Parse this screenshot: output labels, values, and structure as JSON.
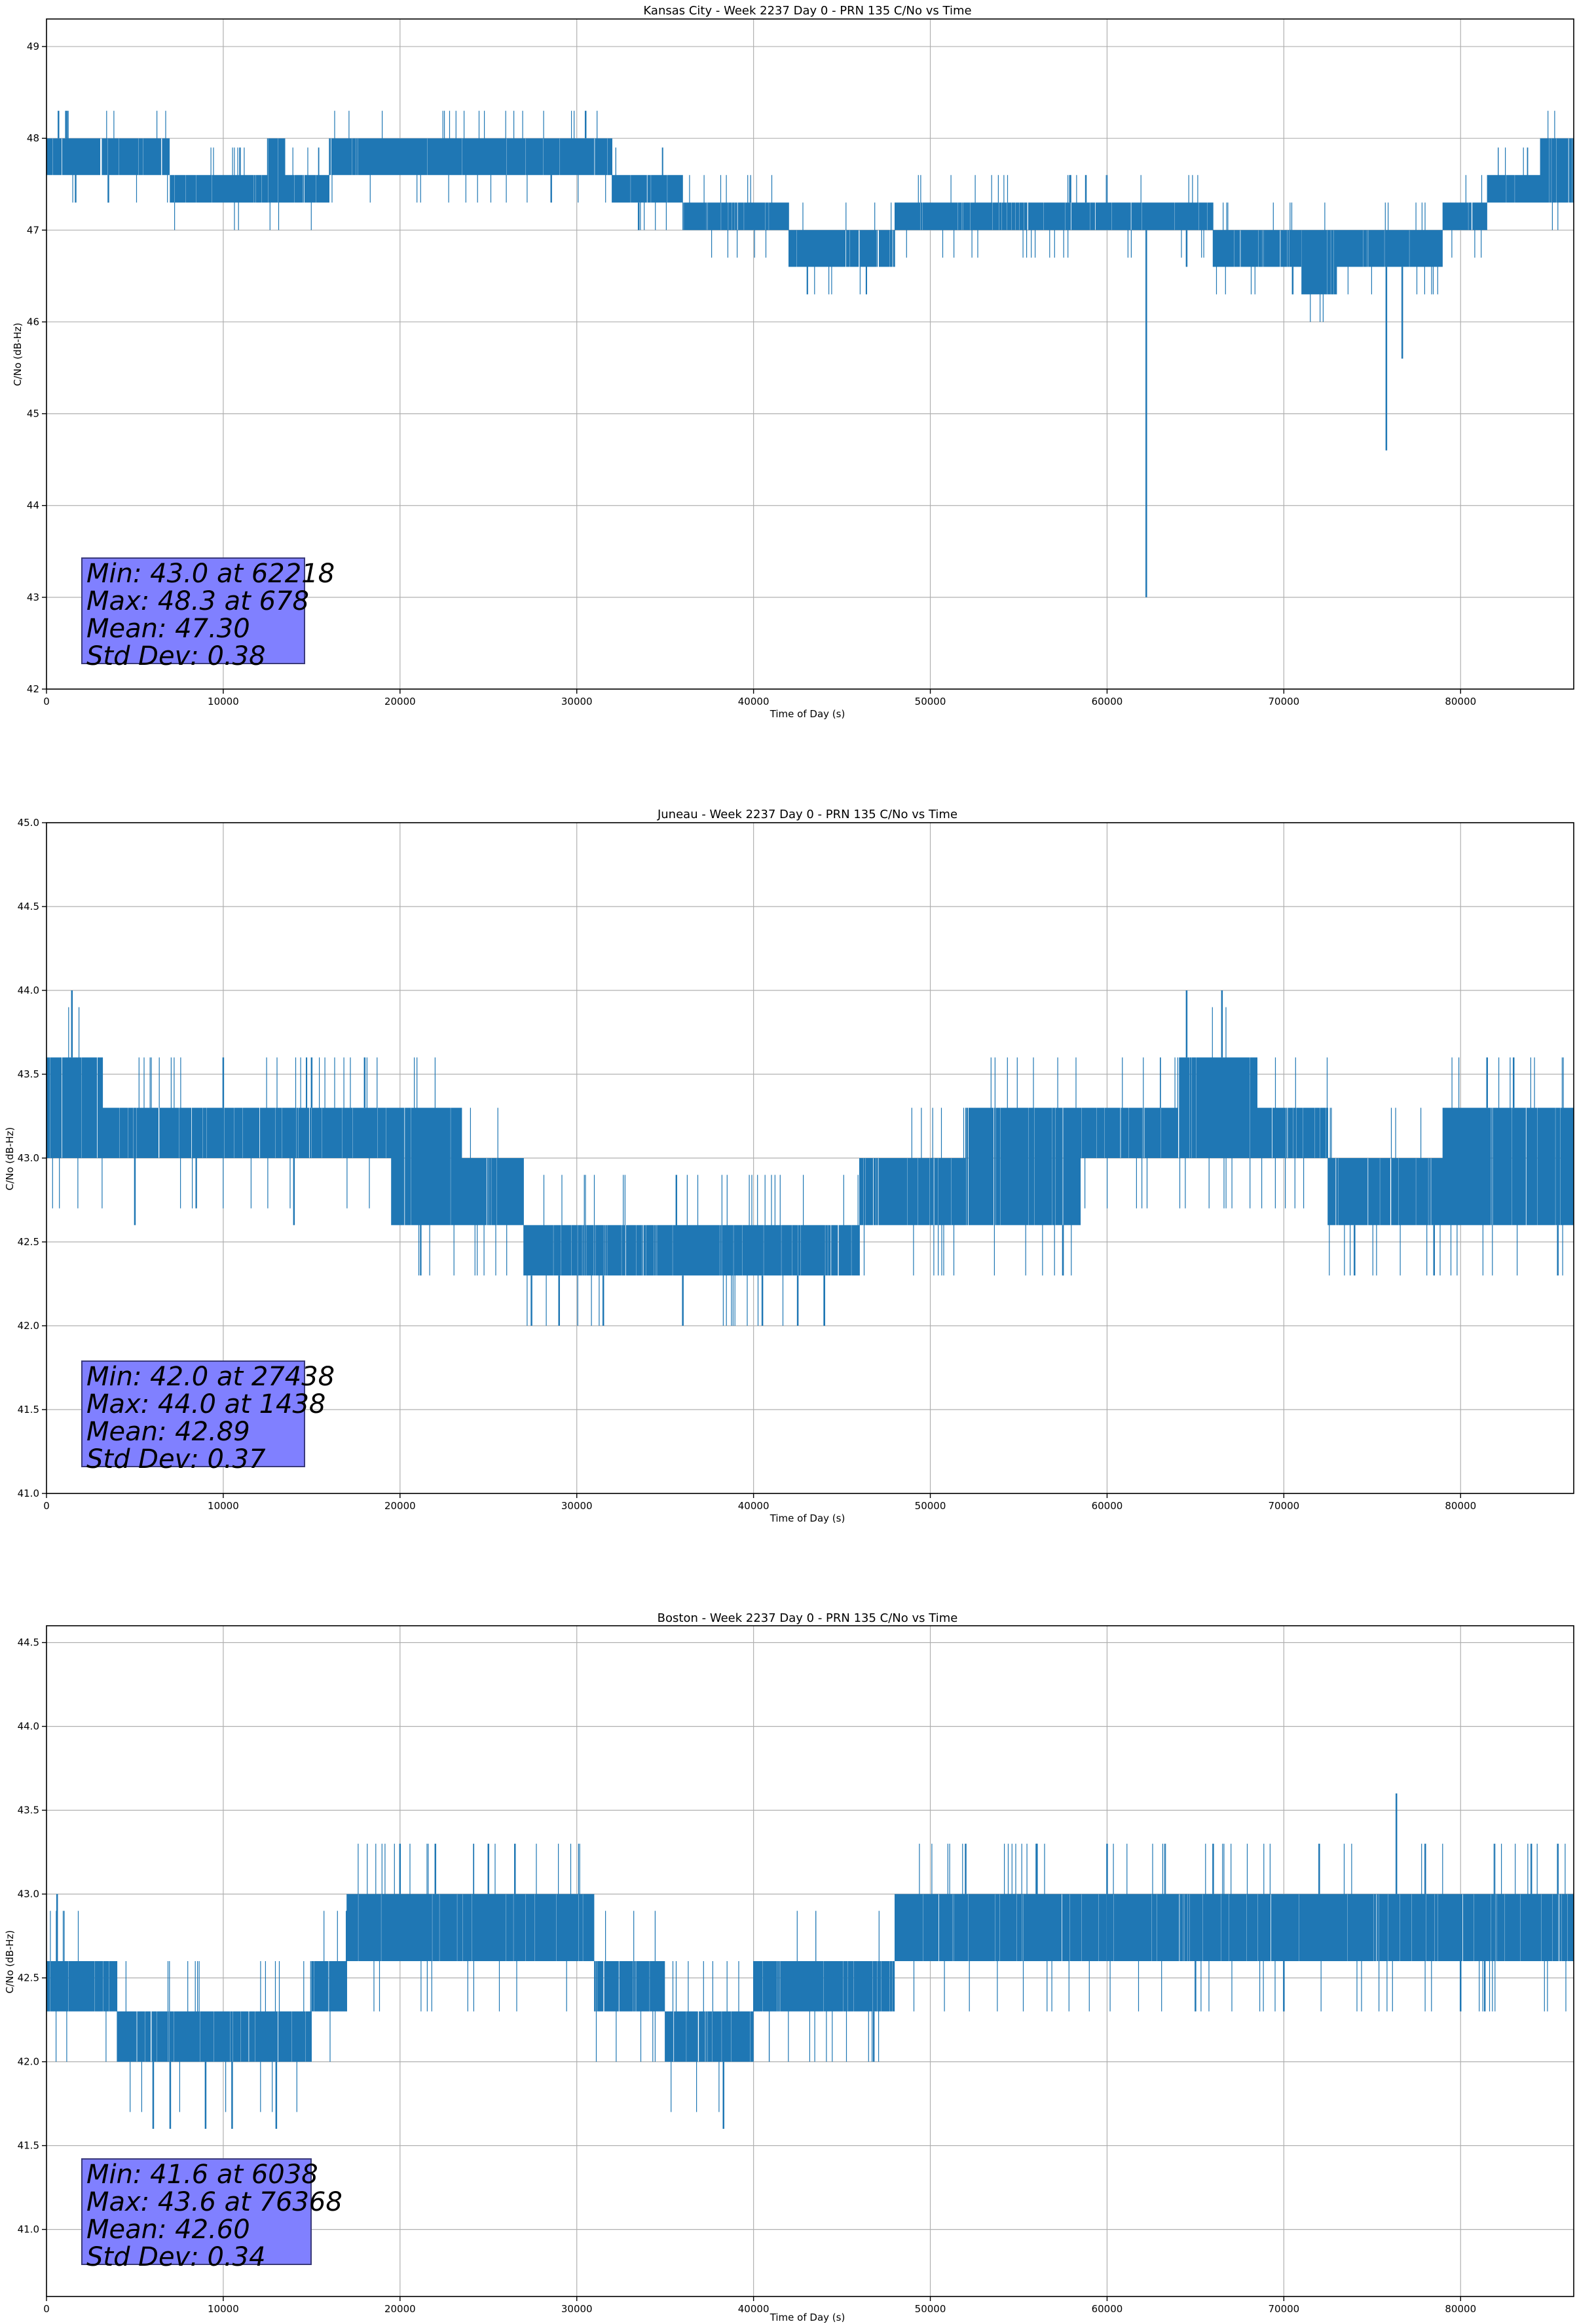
{
  "chart_data": [
    {
      "type": "line",
      "title": "Kansas City - Week 2237 Day 0 - PRN 135 C/No vs Time",
      "xlabel": "Time of Day (s)",
      "ylabel": "C/No (dB-Hz)",
      "xlim": [
        0,
        86400
      ],
      "ylim": [
        42,
        49.3
      ],
      "xticks": [
        0,
        10000,
        20000,
        30000,
        40000,
        50000,
        60000,
        70000,
        80000
      ],
      "yticks": [
        42,
        43,
        44,
        45,
        46,
        47,
        48,
        49
      ],
      "ytick_decimals": 0,
      "grid": true,
      "series_color": "#1f77b4",
      "levels": [
        [
          0,
          7000,
          47.6,
          48.0
        ],
        [
          7000,
          12500,
          47.3,
          47.6
        ],
        [
          12500,
          13500,
          47.3,
          48.0
        ],
        [
          13500,
          16000,
          47.3,
          47.6
        ],
        [
          16000,
          32000,
          47.6,
          48.0
        ],
        [
          32000,
          36000,
          47.3,
          47.6
        ],
        [
          36000,
          42000,
          47.0,
          47.3
        ],
        [
          42000,
          48000,
          46.6,
          47.0
        ],
        [
          48000,
          66000,
          47.0,
          47.3
        ],
        [
          66000,
          71000,
          46.6,
          47.0
        ],
        [
          71000,
          73000,
          46.3,
          47.0
        ],
        [
          73000,
          79000,
          46.6,
          47.0
        ],
        [
          79000,
          81500,
          47.0,
          47.3
        ],
        [
          81500,
          84500,
          47.3,
          47.6
        ],
        [
          84500,
          86400,
          47.3,
          48.0
        ]
      ],
      "spikes": [
        [
          678,
          48.3
        ],
        [
          1100,
          48.3
        ],
        [
          30500,
          48.3
        ],
        [
          62218,
          43.0
        ],
        [
          75800,
          44.6
        ],
        [
          76700,
          45.6
        ],
        [
          3500,
          47.3
        ],
        [
          9800,
          47.3
        ],
        [
          33500,
          47.0
        ],
        [
          44000,
          46.6
        ],
        [
          57900,
          47.6
        ],
        [
          64500,
          46.6
        ],
        [
          58800,
          47.6
        ],
        [
          70500,
          46.3
        ]
      ],
      "stats": [
        "Min: 43.0 at 62218",
        "Max: 48.3 at 678",
        "Mean: 47.30",
        "Std Dev: 0.38"
      ]
    },
    {
      "type": "line",
      "title": "Juneau - Week 2237 Day 0 - PRN 135 C/No vs Time",
      "xlabel": "Time of Day (s)",
      "ylabel": "C/No (dB-Hz)",
      "xlim": [
        0,
        86400
      ],
      "ylim": [
        41,
        45
      ],
      "xticks": [
        0,
        10000,
        20000,
        30000,
        40000,
        50000,
        60000,
        70000,
        80000
      ],
      "yticks": [
        41.0,
        41.5,
        42.0,
        42.5,
        43.0,
        43.5,
        44.0,
        44.5,
        45.0
      ],
      "ytick_decimals": 1,
      "grid": true,
      "series_color": "#1f77b4",
      "levels": [
        [
          0,
          3200,
          43.0,
          43.6
        ],
        [
          3200,
          9500,
          43.0,
          43.3
        ],
        [
          9500,
          19500,
          43.0,
          43.3
        ],
        [
          19500,
          23500,
          42.6,
          43.3
        ],
        [
          23500,
          27000,
          42.6,
          43.0
        ],
        [
          27000,
          46000,
          42.3,
          42.6
        ],
        [
          46000,
          52000,
          42.6,
          43.0
        ],
        [
          52000,
          58500,
          42.6,
          43.3
        ],
        [
          58500,
          64000,
          43.0,
          43.3
        ],
        [
          64000,
          68500,
          43.0,
          43.6
        ],
        [
          68500,
          72500,
          43.0,
          43.3
        ],
        [
          72500,
          79000,
          42.6,
          43.0
        ],
        [
          79000,
          86400,
          42.6,
          43.3
        ]
      ],
      "spikes": [
        [
          1438,
          44.0
        ],
        [
          64500,
          44.0
        ],
        [
          66500,
          44.0
        ],
        [
          27438,
          42.0
        ],
        [
          29000,
          42.0
        ],
        [
          31500,
          42.0
        ],
        [
          36000,
          42.0
        ],
        [
          40500,
          42.0
        ],
        [
          42500,
          42.0
        ],
        [
          44000,
          42.0
        ],
        [
          57500,
          42.3
        ],
        [
          74000,
          42.3
        ],
        [
          78500,
          42.3
        ],
        [
          85500,
          42.3
        ],
        [
          10000,
          43.6
        ],
        [
          15000,
          43.6
        ],
        [
          18000,
          43.6
        ],
        [
          81500,
          43.6
        ],
        [
          83000,
          43.6
        ],
        [
          5000,
          42.6
        ],
        [
          14000,
          42.6
        ]
      ],
      "stats": [
        "Min: 42.0 at 27438",
        "Max: 44.0 at 1438",
        "Mean: 42.89",
        "Std Dev: 0.37"
      ]
    },
    {
      "type": "line",
      "title": "Boston - Week 2237 Day 0 - PRN 135 C/No vs Time",
      "xlabel": "Time of Day (s)",
      "ylabel": "C/No (dB-Hz)",
      "xlim": [
        0,
        86400
      ],
      "ylim": [
        40.6,
        44.6
      ],
      "xticks": [
        0,
        10000,
        20000,
        30000,
        40000,
        50000,
        60000,
        70000,
        80000
      ],
      "yticks": [
        41.0,
        41.5,
        42.0,
        42.5,
        43.0,
        43.5,
        44.0,
        44.5
      ],
      "ytick_decimals": 1,
      "grid": true,
      "series_color": "#1f77b4",
      "levels": [
        [
          0,
          4000,
          42.3,
          42.6
        ],
        [
          4000,
          7000,
          42.0,
          42.3
        ],
        [
          7000,
          15000,
          42.0,
          42.3
        ],
        [
          15000,
          17000,
          42.3,
          42.6
        ],
        [
          17000,
          31000,
          42.6,
          43.0
        ],
        [
          31000,
          35000,
          42.3,
          42.6
        ],
        [
          35000,
          40000,
          42.0,
          42.3
        ],
        [
          40000,
          48000,
          42.3,
          42.6
        ],
        [
          48000,
          60000,
          42.6,
          43.0
        ],
        [
          60000,
          86400,
          42.6,
          43.0
        ]
      ],
      "spikes": [
        [
          600,
          43.0
        ],
        [
          6038,
          41.6
        ],
        [
          7000,
          41.6
        ],
        [
          9000,
          41.6
        ],
        [
          10500,
          41.6
        ],
        [
          13000,
          41.6
        ],
        [
          38300,
          41.6
        ],
        [
          46800,
          42.0
        ],
        [
          76368,
          43.6
        ],
        [
          20000,
          43.3
        ],
        [
          22000,
          43.3
        ],
        [
          25000,
          43.3
        ],
        [
          26500,
          43.3
        ],
        [
          52000,
          43.3
        ],
        [
          56000,
          43.3
        ],
        [
          60000,
          43.3
        ],
        [
          66000,
          43.3
        ],
        [
          72000,
          43.3
        ],
        [
          78000,
          43.3
        ],
        [
          84000,
          43.3
        ],
        [
          85500,
          43.3
        ],
        [
          80000,
          42.3
        ],
        [
          65000,
          42.3
        ],
        [
          70000,
          42.3
        ]
      ],
      "stats": [
        "Min: 41.6 at 6038",
        "Max: 43.6 at 76368",
        "Mean: 42.60",
        "Std Dev: 0.34"
      ]
    }
  ]
}
